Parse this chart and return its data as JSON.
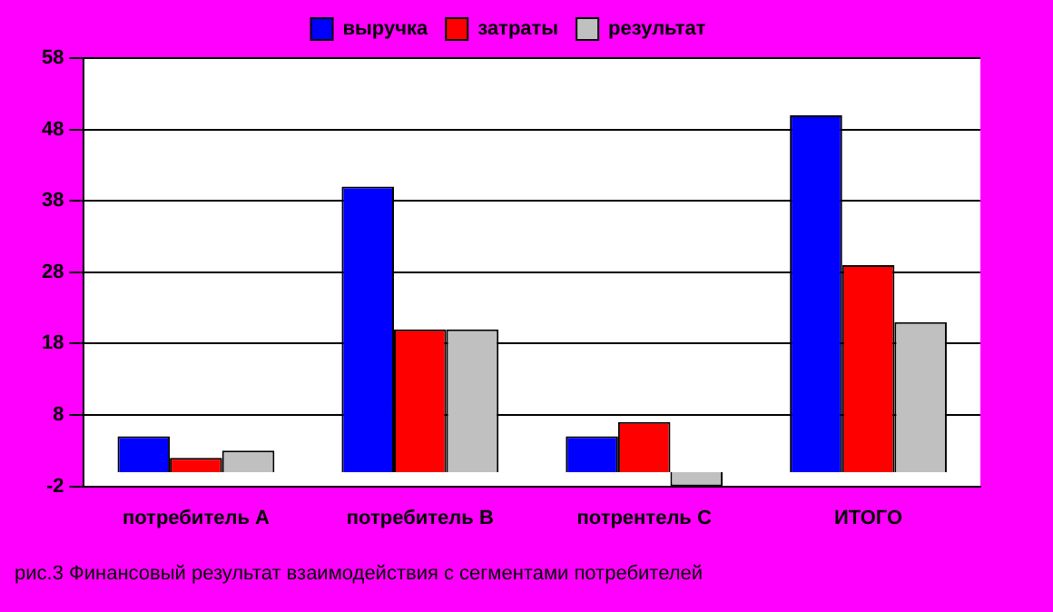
{
  "chart_data": {
    "type": "bar",
    "categories": [
      "потребитель А",
      "потребитель В",
      "потрентель С",
      "ИТОГО"
    ],
    "series": [
      {
        "name": "выручка",
        "color": "#0000ff",
        "values": [
          5,
          40,
          5,
          50
        ]
      },
      {
        "name": "затраты",
        "color": "#ff0000",
        "values": [
          2,
          20,
          7,
          29
        ]
      },
      {
        "name": "результат",
        "color": "#c0c0c0",
        "values": [
          3,
          20,
          -2,
          21
        ]
      }
    ],
    "ylim": [
      -2,
      58
    ],
    "yticks": [
      -2,
      8,
      18,
      28,
      38,
      48,
      58
    ],
    "grid": "y",
    "legend": "top",
    "annotations": [
      "рис.3 Финансовый результат взаимодействия с сегментами потребителей"
    ]
  }
}
